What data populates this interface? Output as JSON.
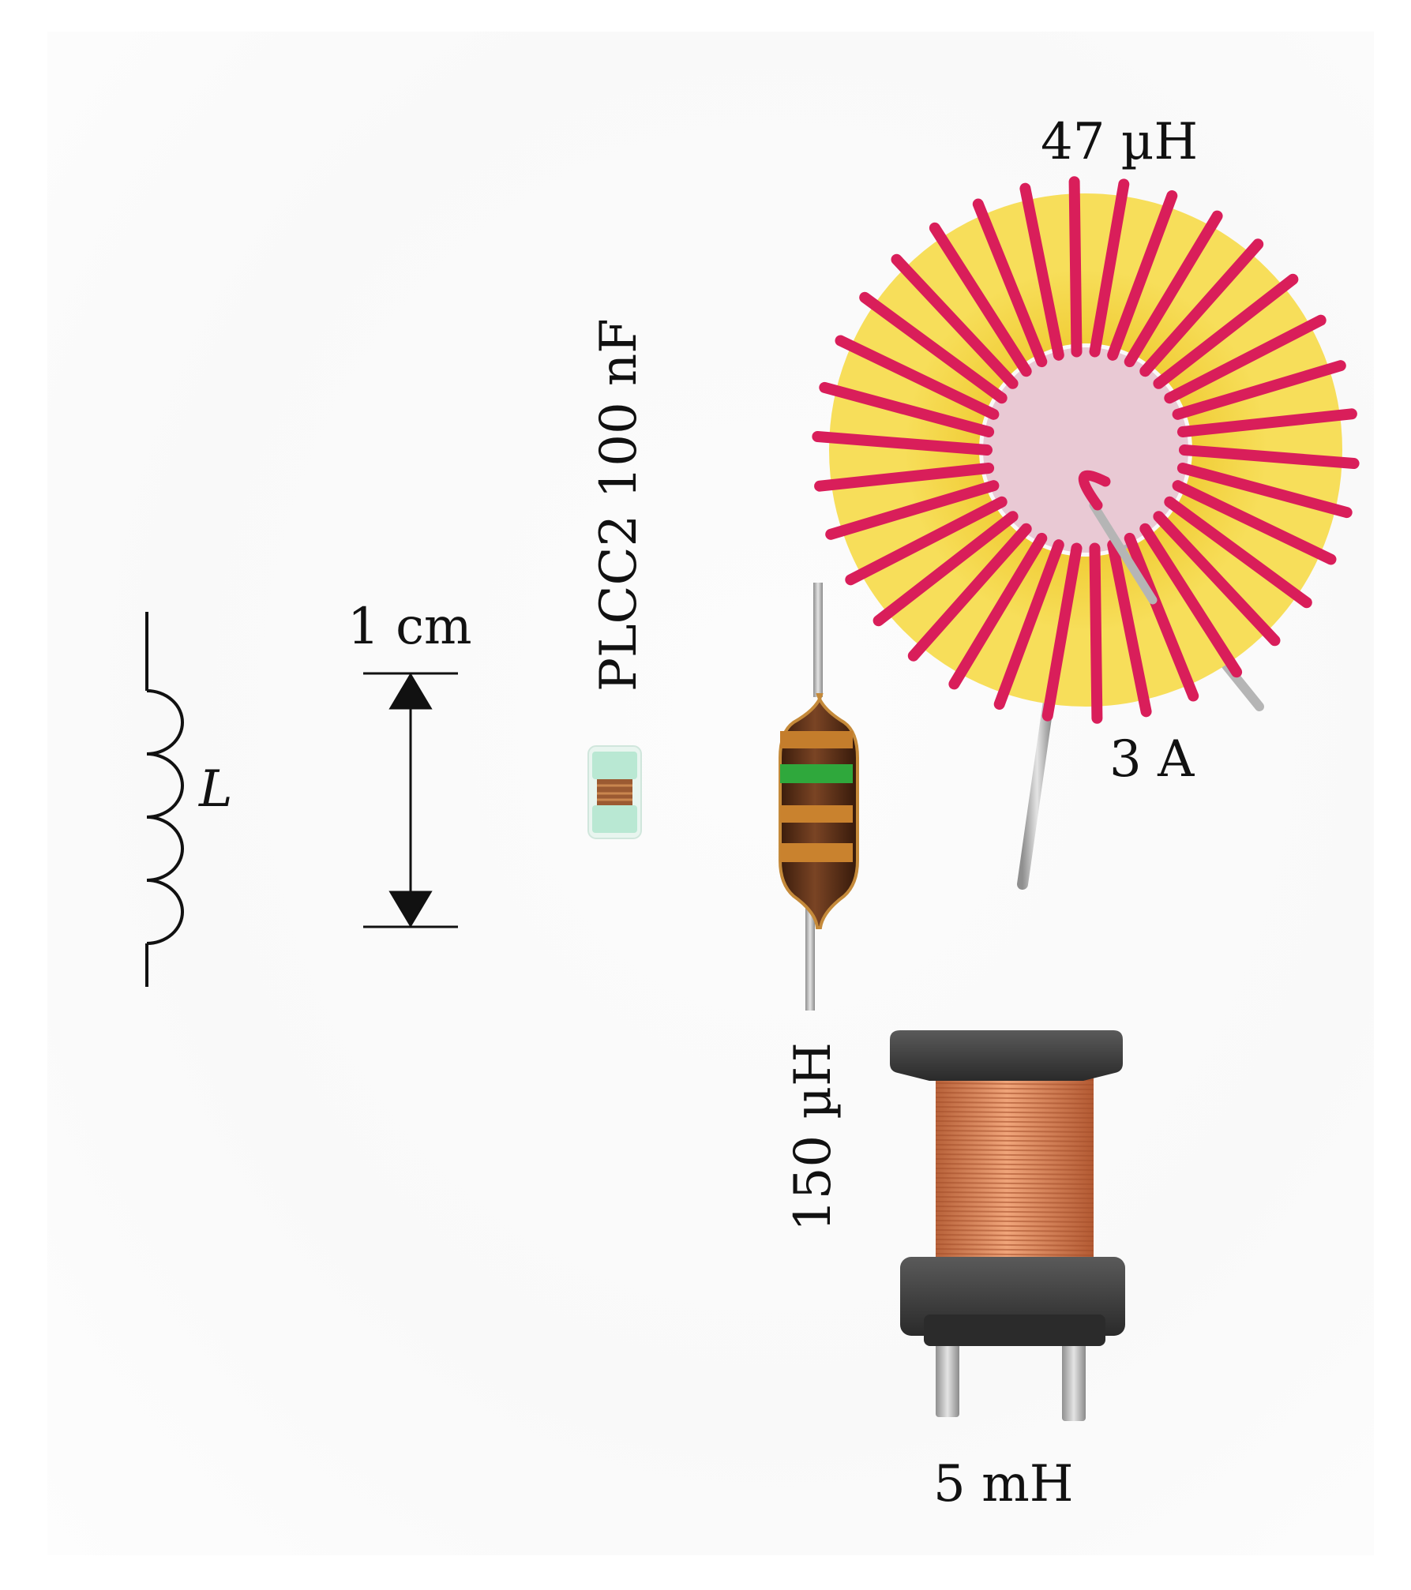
{
  "labels": {
    "symbol": "L",
    "scale": "1 cm",
    "smd_part": "PLCC2 100 nF",
    "toroid_inductance": "47 µH",
    "toroid_current": "3 A",
    "axial_inductance": "150 µH",
    "drum_inductance": "5 mH"
  },
  "colors": {
    "toroid_core": "#f3d43a",
    "toroid_wire": "#d91e5a",
    "axial_body": "#5a3018",
    "axial_band_green": "#2fa83c",
    "axial_band_orange": "#c9822e",
    "drum_core": "#3a3a3a",
    "drum_winding": "#d9844f",
    "smd_body": "#b8e7d2",
    "lead": "#b9b9b9"
  },
  "icons": {
    "inductor_symbol": "inductor-schematic-icon",
    "scale_bar": "dimension-arrow-icon"
  }
}
